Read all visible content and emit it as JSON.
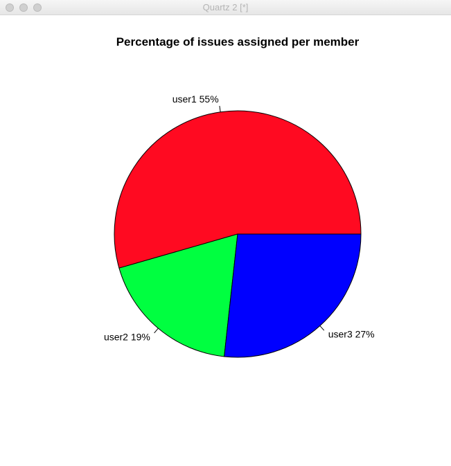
{
  "window": {
    "title": "Quartz 2 [*]"
  },
  "chart_data": {
    "type": "pie",
    "title": "Percentage of issues assigned per member",
    "slices": [
      {
        "label": "user1 55%",
        "category": "user1",
        "percent": 55,
        "color": "#ff0a21"
      },
      {
        "label": "user2 19%",
        "category": "user2",
        "percent": 19,
        "color": "#00ff40"
      },
      {
        "label": "user3 27%",
        "category": "user3",
        "percent": 27,
        "color": "#0000ff"
      }
    ],
    "start": "3 o'clock",
    "direction": "counterclockwise",
    "legend": "none"
  }
}
